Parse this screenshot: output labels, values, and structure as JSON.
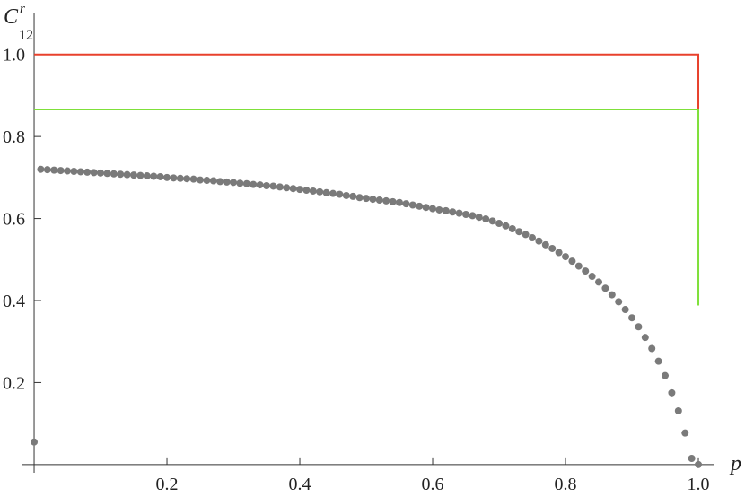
{
  "chart_data": {
    "type": "scatter",
    "y_label": "C",
    "y_label_sup": "r",
    "y_label_sub": "12",
    "x_label": "p",
    "xlim": [
      -0.0176,
      1.0243
    ],
    "ylim": [
      -0.02,
      1.1
    ],
    "xticks": [
      0.2,
      0.4,
      0.6,
      0.8,
      {
        "value": 1,
        "label": "1.0"
      }
    ],
    "yticks": [
      0.2,
      0.4,
      0.6,
      0.8,
      {
        "value": 1,
        "label": "1.0"
      }
    ],
    "lines": [
      {
        "color": "#e8412c",
        "x": [
          0,
          1,
          1
        ],
        "values": [
          1,
          1,
          0.866
        ]
      },
      {
        "color": "#7fe03a",
        "x": [
          0,
          1,
          1
        ],
        "values": [
          0.866,
          0.866,
          0.388
        ]
      }
    ],
    "series": [
      {
        "color": "#7a7a7a",
        "x": [
          0,
          0.01,
          0.02,
          0.03,
          0.04,
          0.05,
          0.06,
          0.07,
          0.08,
          0.09,
          0.1,
          0.11,
          0.12,
          0.13,
          0.14,
          0.15,
          0.16,
          0.17,
          0.18,
          0.19,
          0.2,
          0.21,
          0.22,
          0.23,
          0.24,
          0.25,
          0.26,
          0.27,
          0.28,
          0.29,
          0.3,
          0.31,
          0.32,
          0.33,
          0.34,
          0.35,
          0.36,
          0.37,
          0.38,
          0.39,
          0.4,
          0.41,
          0.42,
          0.43,
          0.44,
          0.45,
          0.46,
          0.47,
          0.48,
          0.49,
          0.5,
          0.51,
          0.52,
          0.53,
          0.54,
          0.55,
          0.56,
          0.57,
          0.58,
          0.59,
          0.6,
          0.61,
          0.62,
          0.63,
          0.64,
          0.65,
          0.66,
          0.67,
          0.68,
          0.69,
          0.7,
          0.71,
          0.72,
          0.73,
          0.74,
          0.75,
          0.76,
          0.77,
          0.78,
          0.79,
          0.8,
          0.81,
          0.82,
          0.83,
          0.84,
          0.85,
          0.86,
          0.87,
          0.88,
          0.89,
          0.9,
          0.91,
          0.92,
          0.93,
          0.94,
          0.95,
          0.96,
          0.97,
          0.98,
          0.99,
          1
        ],
        "values": [
          0.055,
          0.72,
          0.719,
          0.718,
          0.717,
          0.716,
          0.715,
          0.714,
          0.713,
          0.712,
          0.711,
          0.71,
          0.709,
          0.708,
          0.707,
          0.706,
          0.705,
          0.704,
          0.703,
          0.702,
          0.7,
          0.699,
          0.698,
          0.697,
          0.696,
          0.694,
          0.693,
          0.692,
          0.69,
          0.689,
          0.688,
          0.686,
          0.685,
          0.683,
          0.682,
          0.68,
          0.679,
          0.677,
          0.675,
          0.673,
          0.671,
          0.669,
          0.667,
          0.665,
          0.663,
          0.661,
          0.659,
          0.656,
          0.654,
          0.651,
          0.649,
          0.647,
          0.645,
          0.643,
          0.641,
          0.639,
          0.636,
          0.633,
          0.63,
          0.627,
          0.624,
          0.621,
          0.619,
          0.616,
          0.613,
          0.61,
          0.607,
          0.603,
          0.599,
          0.594,
          0.588,
          0.582,
          0.575,
          0.568,
          0.561,
          0.553,
          0.545,
          0.536,
          0.527,
          0.517,
          0.507,
          0.496,
          0.484,
          0.472,
          0.459,
          0.445,
          0.43,
          0.414,
          0.397,
          0.378,
          0.358,
          0.336,
          0.31,
          0.283,
          0.252,
          0.217,
          0.175,
          0.131,
          0.077,
          0.015,
          0
        ]
      }
    ]
  }
}
